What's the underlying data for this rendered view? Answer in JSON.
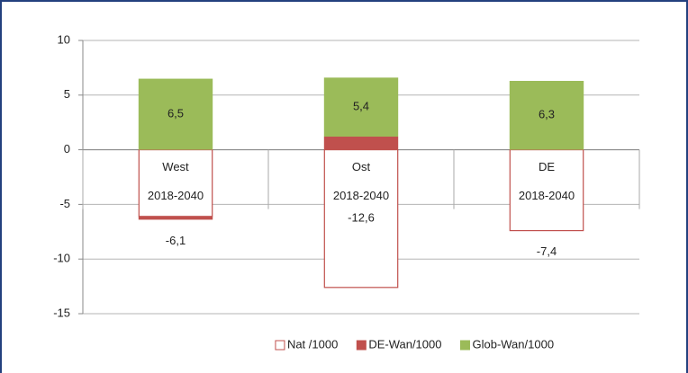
{
  "chart_data": {
    "type": "stacked_bar",
    "categories": [
      [
        "West",
        "2018-2040"
      ],
      [
        "Ost",
        "2018-2040"
      ],
      [
        "DE",
        "2018-2040"
      ]
    ],
    "ylim": [
      -15,
      10
    ],
    "yticks": [
      -15,
      -10,
      -5,
      0,
      5,
      10
    ],
    "grid": true,
    "legend": "bottom",
    "series": [
      {
        "name": "Nat /1000",
        "color": "#c0504d",
        "style": "outline",
        "values": [
          -6.1,
          -12.6,
          -7.4
        ],
        "value_labels": [
          "-6,1",
          "-12,6",
          "-7,4"
        ]
      },
      {
        "name": "DE-Wan/1000",
        "color": "#c0504d",
        "style": "filled",
        "values": [
          -0.3,
          1.2,
          0
        ]
      },
      {
        "name": "Glob-Wan/1000",
        "color": "#9bbb59",
        "style": "filled",
        "values": [
          6.5,
          5.4,
          6.3
        ],
        "value_labels": [
          "6,5",
          "5,4",
          "6,3"
        ]
      }
    ]
  }
}
